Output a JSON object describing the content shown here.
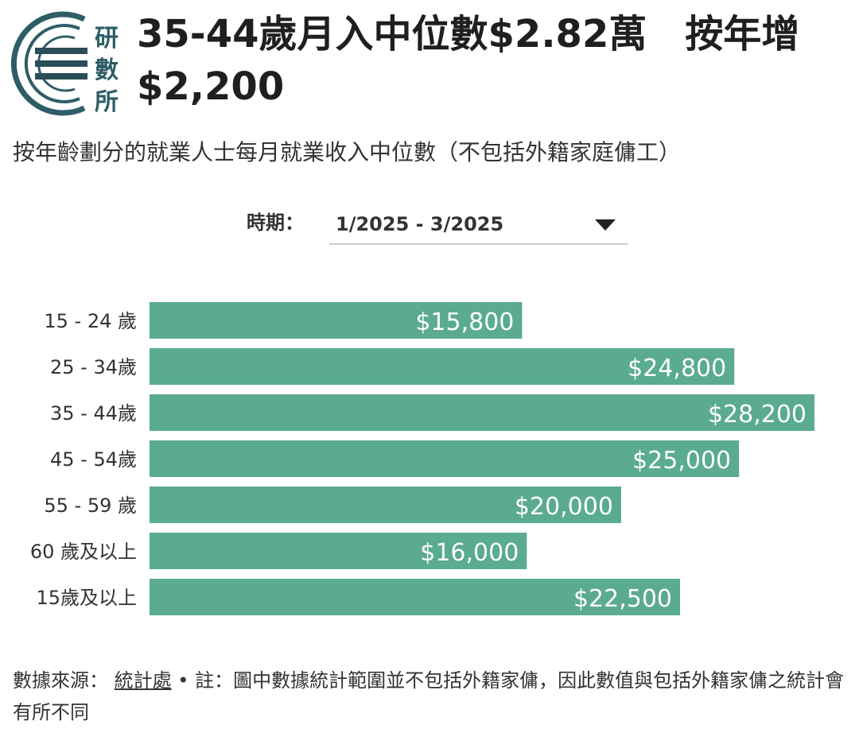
{
  "logo": {
    "text_line1": "研",
    "text_line2": "數",
    "text_line3": "所",
    "colors": {
      "primary": "#2e5d66",
      "bars": "#2a4d57"
    }
  },
  "header": {
    "title": "35-44歲月入中位數$2.82萬　按年增$2,200",
    "subtitle": "按年齡劃分的就業人士每月就業收入中位數（不包括外籍家庭傭工）"
  },
  "filter": {
    "label": "時期：",
    "selected": "1/2025 - 3/2025",
    "icon": "caret-down-icon"
  },
  "chart_data": {
    "type": "bar",
    "orientation": "horizontal",
    "categories": [
      "15 - 24 歲",
      "25 - 34歲",
      "35 - 44歲",
      "45 - 54歲",
      "55 - 59 歲",
      "60 歲及以上",
      "15歲及以上"
    ],
    "values": [
      15800,
      24800,
      28200,
      25000,
      20000,
      16000,
      22500
    ],
    "data_labels": [
      "$15,800",
      "$24,800",
      "$28,200",
      "$25,000",
      "$20,000",
      "$16,000",
      "$22,500"
    ],
    "xlim": [
      0,
      28200
    ],
    "grid": false,
    "bar_color": "#5aab8f",
    "label_color": "#ffffff"
  },
  "footer": {
    "source_prefix": "數據來源：",
    "source_link": "統計處",
    "note": "• 註：圖中數據統計範圍並不包括外籍家傭，因此數值與包括外籍家傭之統計會有所不同"
  }
}
